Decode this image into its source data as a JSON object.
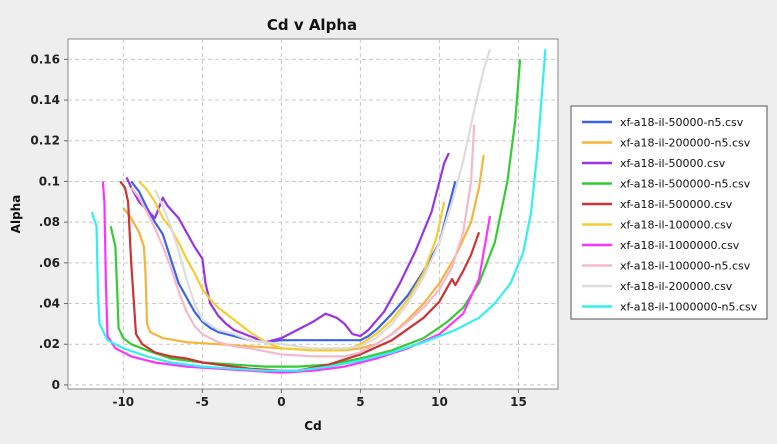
{
  "chart_data": {
    "type": "line",
    "title": "Cd v Alpha",
    "xlabel": "Cd",
    "ylabel": "Alpha",
    "xlim": [
      -13.5,
      17.5
    ],
    "ylim": [
      -0.002,
      0.17
    ],
    "x_ticks": [
      {
        "value": -10,
        "label": "-10"
      },
      {
        "value": -5,
        "label": "-5"
      },
      {
        "value": 0,
        "label": "0"
      },
      {
        "value": 5,
        "label": "5"
      },
      {
        "value": 10,
        "label": "10"
      },
      {
        "value": 15,
        "label": "15"
      }
    ],
    "y_ticks": [
      {
        "value": 0,
        "label": "0"
      },
      {
        "value": 0.02,
        "label": ".02"
      },
      {
        "value": 0.04,
        "label": ".04"
      },
      {
        "value": 0.06,
        "label": ".06"
      },
      {
        "value": 0.08,
        "label": ".08"
      },
      {
        "value": 0.1,
        "label": "0.1"
      },
      {
        "value": 0.12,
        "label": "0.12"
      },
      {
        "value": 0.14,
        "label": "0.14"
      },
      {
        "value": 0.16,
        "label": "0.16"
      }
    ],
    "grid": true,
    "legend_position": "right",
    "series": [
      {
        "name": "xf-a18-il-50000-n5.csv",
        "color": "#3b63e6",
        "points": [
          [
            -9.5,
            0.1
          ],
          [
            -9,
            0.095
          ],
          [
            -8.5,
            0.087
          ],
          [
            -8,
            0.08
          ],
          [
            -7.5,
            0.074
          ],
          [
            -7,
            0.062
          ],
          [
            -6.5,
            0.05
          ],
          [
            -6,
            0.043
          ],
          [
            -5.5,
            0.036
          ],
          [
            -5,
            0.031
          ],
          [
            -4.5,
            0.028
          ],
          [
            -4,
            0.026
          ],
          [
            -3,
            0.024
          ],
          [
            -2,
            0.022
          ],
          [
            -1,
            0.021
          ],
          [
            0,
            0.022
          ],
          [
            1,
            0.022
          ],
          [
            2,
            0.022
          ],
          [
            3,
            0.022
          ],
          [
            4,
            0.022
          ],
          [
            5,
            0.022
          ],
          [
            5.5,
            0.024
          ],
          [
            6,
            0.027
          ],
          [
            7,
            0.035
          ],
          [
            8,
            0.044
          ],
          [
            9,
            0.056
          ],
          [
            10,
            0.07
          ],
          [
            10.5,
            0.085
          ],
          [
            11,
            0.1
          ]
        ]
      },
      {
        "name": "xf-a18-il-200000-n5.csv",
        "color": "#f5b43c",
        "points": [
          [
            -10,
            0.087
          ],
          [
            -9.5,
            0.082
          ],
          [
            -9,
            0.075
          ],
          [
            -8.7,
            0.068
          ],
          [
            -8.6,
            0.055
          ],
          [
            -8.5,
            0.03
          ],
          [
            -8.3,
            0.026
          ],
          [
            -7.5,
            0.023
          ],
          [
            -6,
            0.021
          ],
          [
            -4,
            0.02
          ],
          [
            -2,
            0.019
          ],
          [
            0,
            0.018
          ],
          [
            2,
            0.017
          ],
          [
            4,
            0.017
          ],
          [
            5,
            0.018
          ],
          [
            6,
            0.02
          ],
          [
            7,
            0.025
          ],
          [
            8,
            0.032
          ],
          [
            9,
            0.04
          ],
          [
            10,
            0.05
          ],
          [
            11,
            0.063
          ],
          [
            12,
            0.08
          ],
          [
            12.5,
            0.097
          ],
          [
            12.8,
            0.113
          ]
        ]
      },
      {
        "name": "xf-a18-il-50000.csv",
        "color": "#9933e6",
        "points": [
          [
            -9.8,
            0.102
          ],
          [
            -9.5,
            0.097
          ],
          [
            -9,
            0.09
          ],
          [
            -8.5,
            0.086
          ],
          [
            -8,
            0.082
          ],
          [
            -7.5,
            0.092
          ],
          [
            -7.2,
            0.088
          ],
          [
            -6.5,
            0.082
          ],
          [
            -6,
            0.075
          ],
          [
            -5.5,
            0.068
          ],
          [
            -5,
            0.062
          ],
          [
            -4.8,
            0.05
          ],
          [
            -4.5,
            0.04
          ],
          [
            -4,
            0.034
          ],
          [
            -3.5,
            0.03
          ],
          [
            -3,
            0.027
          ],
          [
            -2,
            0.024
          ],
          [
            -1,
            0.021
          ],
          [
            0,
            0.023
          ],
          [
            1,
            0.027
          ],
          [
            2,
            0.031
          ],
          [
            2.8,
            0.035
          ],
          [
            3.5,
            0.033
          ],
          [
            4,
            0.03
          ],
          [
            4.5,
            0.025
          ],
          [
            5,
            0.024
          ],
          [
            5.5,
            0.027
          ],
          [
            6.5,
            0.036
          ],
          [
            7.5,
            0.05
          ],
          [
            8.5,
            0.066
          ],
          [
            9.5,
            0.085
          ],
          [
            10,
            0.1
          ],
          [
            10.3,
            0.109
          ],
          [
            10.6,
            0.114
          ]
        ]
      },
      {
        "name": "xf-a18-il-500000-n5.csv",
        "color": "#33cc33",
        "points": [
          [
            -10.8,
            0.078
          ],
          [
            -10.5,
            0.068
          ],
          [
            -10.3,
            0.028
          ],
          [
            -10,
            0.023
          ],
          [
            -9.5,
            0.02
          ],
          [
            -8.5,
            0.017
          ],
          [
            -7,
            0.013
          ],
          [
            -5,
            0.011
          ],
          [
            -3,
            0.01
          ],
          [
            -1,
            0.009
          ],
          [
            1,
            0.009
          ],
          [
            3,
            0.01
          ],
          [
            5,
            0.013
          ],
          [
            7,
            0.017
          ],
          [
            9,
            0.023
          ],
          [
            10.5,
            0.031
          ],
          [
            11.5,
            0.038
          ],
          [
            12.5,
            0.05
          ],
          [
            13.5,
            0.07
          ],
          [
            14.3,
            0.1
          ],
          [
            14.8,
            0.13
          ],
          [
            15.1,
            0.16
          ]
        ]
      },
      {
        "name": "xf-a18-il-500000.csv",
        "color": "#cc3333",
        "points": [
          [
            -10.2,
            0.1
          ],
          [
            -9.9,
            0.097
          ],
          [
            -9.7,
            0.09
          ],
          [
            -9.5,
            0.06
          ],
          [
            -9.2,
            0.025
          ],
          [
            -8.8,
            0.02
          ],
          [
            -8,
            0.016
          ],
          [
            -7,
            0.014
          ],
          [
            -6,
            0.013
          ],
          [
            -5,
            0.011
          ],
          [
            -4,
            0.01
          ],
          [
            -2,
            0.008
          ],
          [
            0,
            0.007
          ],
          [
            1,
            0.007
          ],
          [
            3,
            0.01
          ],
          [
            5,
            0.015
          ],
          [
            7,
            0.022
          ],
          [
            9,
            0.033
          ],
          [
            10,
            0.041
          ],
          [
            10.5,
            0.048
          ],
          [
            10.8,
            0.052
          ],
          [
            11,
            0.049
          ],
          [
            11.5,
            0.056
          ],
          [
            12,
            0.064
          ],
          [
            12.5,
            0.075
          ]
        ]
      },
      {
        "name": "xf-a18-il-100000.csv",
        "color": "#f5cc33",
        "points": [
          [
            -9,
            0.1
          ],
          [
            -8.5,
            0.096
          ],
          [
            -8,
            0.09
          ],
          [
            -7.5,
            0.082
          ],
          [
            -7,
            0.077
          ],
          [
            -6.5,
            0.07
          ],
          [
            -6,
            0.062
          ],
          [
            -5.5,
            0.055
          ],
          [
            -5,
            0.047
          ],
          [
            -4.5,
            0.042
          ],
          [
            -4,
            0.038
          ],
          [
            -3,
            0.032
          ],
          [
            -2,
            0.026
          ],
          [
            -1,
            0.021
          ],
          [
            0,
            0.018
          ],
          [
            2,
            0.017
          ],
          [
            4,
            0.017
          ],
          [
            5,
            0.02
          ],
          [
            6,
            0.025
          ],
          [
            7,
            0.032
          ],
          [
            8,
            0.042
          ],
          [
            9,
            0.055
          ],
          [
            9.8,
            0.072
          ],
          [
            10.3,
            0.09
          ]
        ]
      },
      {
        "name": "xf-a18-il-1000000.csv",
        "color": "#ff33ff",
        "points": [
          [
            -11.3,
            0.1
          ],
          [
            -11.2,
            0.09
          ],
          [
            -11.1,
            0.05
          ],
          [
            -11,
            0.024
          ],
          [
            -10.5,
            0.018
          ],
          [
            -9.5,
            0.014
          ],
          [
            -8,
            0.011
          ],
          [
            -6,
            0.009
          ],
          [
            -4,
            0.008
          ],
          [
            -2,
            0.007
          ],
          [
            0,
            0.006
          ],
          [
            2,
            0.007
          ],
          [
            4,
            0.009
          ],
          [
            6,
            0.013
          ],
          [
            8,
            0.018
          ],
          [
            10,
            0.025
          ],
          [
            11.5,
            0.035
          ],
          [
            12.5,
            0.052
          ],
          [
            13.2,
            0.083
          ]
        ]
      },
      {
        "name": "xf-a18-il-100000-n5.csv",
        "color": "#f5b8cc",
        "points": [
          [
            -9.5,
            0.097
          ],
          [
            -9,
            0.092
          ],
          [
            -8.5,
            0.085
          ],
          [
            -8,
            0.077
          ],
          [
            -7.5,
            0.068
          ],
          [
            -7,
            0.058
          ],
          [
            -6.5,
            0.046
          ],
          [
            -6,
            0.036
          ],
          [
            -5.5,
            0.029
          ],
          [
            -5,
            0.025
          ],
          [
            -4,
            0.021
          ],
          [
            -3,
            0.019
          ],
          [
            -2,
            0.018
          ],
          [
            0,
            0.015
          ],
          [
            2,
            0.014
          ],
          [
            4,
            0.014
          ],
          [
            5,
            0.016
          ],
          [
            6,
            0.02
          ],
          [
            7,
            0.025
          ],
          [
            8,
            0.031
          ],
          [
            9,
            0.038
          ],
          [
            10,
            0.047
          ],
          [
            10.8,
            0.058
          ],
          [
            11.5,
            0.075
          ],
          [
            12,
            0.1
          ],
          [
            12.2,
            0.128
          ]
        ]
      },
      {
        "name": "xf-a18-il-200000.csv",
        "color": "#dddddd",
        "points": [
          [
            -8,
            0.096
          ],
          [
            -7.5,
            0.088
          ],
          [
            -7,
            0.078
          ],
          [
            -6.5,
            0.066
          ],
          [
            -6,
            0.052
          ],
          [
            -5.5,
            0.04
          ],
          [
            -5,
            0.032
          ],
          [
            -4,
            0.027
          ],
          [
            -3,
            0.025
          ],
          [
            -2,
            0.022
          ],
          [
            0,
            0.02
          ],
          [
            2,
            0.018
          ],
          [
            4,
            0.018
          ],
          [
            5,
            0.019
          ],
          [
            6,
            0.023
          ],
          [
            7,
            0.03
          ],
          [
            8,
            0.04
          ],
          [
            9,
            0.053
          ],
          [
            10,
            0.07
          ],
          [
            10.8,
            0.09
          ],
          [
            11.5,
            0.11
          ],
          [
            12.2,
            0.135
          ],
          [
            12.8,
            0.155
          ],
          [
            13.2,
            0.165
          ]
        ]
      },
      {
        "name": "xf-a18-il-1000000-n5.csv",
        "color": "#33f0f0",
        "points": [
          [
            -12,
            0.085
          ],
          [
            -11.7,
            0.078
          ],
          [
            -11.6,
            0.045
          ],
          [
            -11.5,
            0.03
          ],
          [
            -11,
            0.022
          ],
          [
            -10,
            0.018
          ],
          [
            -8.5,
            0.014
          ],
          [
            -7,
            0.011
          ],
          [
            -5,
            0.009
          ],
          [
            -3,
            0.008
          ],
          [
            -1,
            0.007
          ],
          [
            1,
            0.007
          ],
          [
            3,
            0.009
          ],
          [
            5,
            0.012
          ],
          [
            7,
            0.016
          ],
          [
            9,
            0.021
          ],
          [
            11,
            0.027
          ],
          [
            12.5,
            0.033
          ],
          [
            13.5,
            0.04
          ],
          [
            14.5,
            0.05
          ],
          [
            15.3,
            0.065
          ],
          [
            15.8,
            0.085
          ],
          [
            16.2,
            0.115
          ],
          [
            16.5,
            0.145
          ],
          [
            16.7,
            0.165
          ]
        ]
      }
    ]
  }
}
